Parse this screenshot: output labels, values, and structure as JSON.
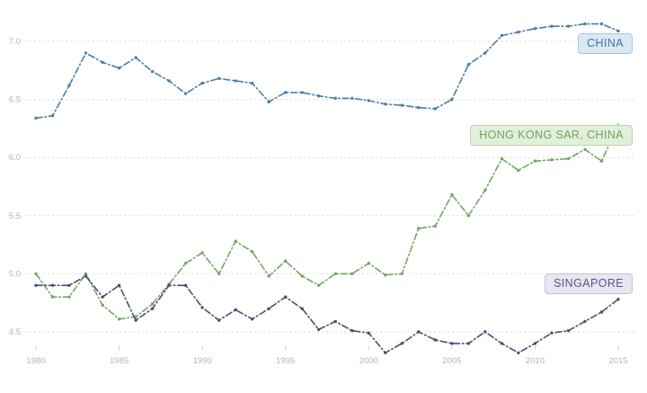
{
  "chart_data": {
    "type": "line",
    "title": "",
    "xlabel": "",
    "ylabel": "",
    "grid": true,
    "line_style": "dash-dot with point markers",
    "legend_position": "inline badges at line ends (right side)",
    "xlim": [
      1979.5,
      2016
    ],
    "ylim": [
      4.25,
      7.3
    ],
    "x_ticks": [
      1980,
      1985,
      1990,
      1995,
      2000,
      2005,
      2010,
      2015
    ],
    "y_ticks": [
      4.5,
      5.0,
      5.5,
      6.0,
      6.5,
      7.0
    ],
    "x": [
      1980,
      1981,
      1982,
      1983,
      1984,
      1985,
      1986,
      1987,
      1988,
      1989,
      1990,
      1991,
      1992,
      1993,
      1994,
      1995,
      1996,
      1997,
      1998,
      1999,
      2000,
      2001,
      2002,
      2003,
      2004,
      2005,
      2006,
      2007,
      2008,
      2009,
      2010,
      2011,
      2012,
      2013,
      2014,
      2015
    ],
    "series": [
      {
        "name": "CHINA",
        "color": "#4d7ea8",
        "values": [
          6.34,
          6.36,
          6.62,
          6.9,
          6.82,
          6.77,
          6.86,
          6.74,
          6.66,
          6.55,
          6.64,
          6.68,
          6.66,
          6.64,
          6.48,
          6.56,
          6.56,
          6.53,
          6.51,
          6.51,
          6.49,
          6.46,
          6.45,
          6.43,
          6.42,
          6.5,
          6.8,
          6.9,
          7.05,
          7.08,
          7.11,
          7.13,
          7.13,
          7.15,
          7.15,
          7.09
        ]
      },
      {
        "name": "HONG KONG SAR, CHINA",
        "color": "#74a662",
        "values": [
          5.0,
          4.8,
          4.8,
          5.0,
          4.73,
          4.61,
          4.63,
          4.74,
          4.91,
          5.09,
          5.18,
          5.0,
          5.28,
          5.19,
          4.98,
          5.11,
          4.98,
          4.9,
          5.0,
          5.0,
          5.09,
          4.99,
          5.0,
          5.39,
          5.41,
          5.68,
          5.5,
          5.72,
          5.99,
          5.89,
          5.97,
          5.98,
          5.99,
          6.07,
          5.97,
          6.28
        ]
      },
      {
        "name": "SINGAPORE",
        "color": "#4d4d71",
        "values": [
          4.9,
          4.9,
          4.9,
          4.98,
          4.8,
          4.9,
          4.6,
          4.7,
          4.9,
          4.9,
          4.71,
          4.6,
          4.69,
          4.61,
          4.7,
          4.8,
          4.7,
          4.52,
          4.59,
          4.51,
          4.49,
          4.32,
          4.4,
          4.5,
          4.43,
          4.4,
          4.4,
          4.5,
          4.4,
          4.32,
          4.4,
          4.49,
          4.51,
          4.59,
          4.67,
          4.78
        ]
      }
    ]
  },
  "style": {
    "gridline_color": "#dbdbdb",
    "tick_label_color": "#b4b4b4",
    "tick_mark_color": "#cfcfcf",
    "background_color": "#ffffff"
  }
}
